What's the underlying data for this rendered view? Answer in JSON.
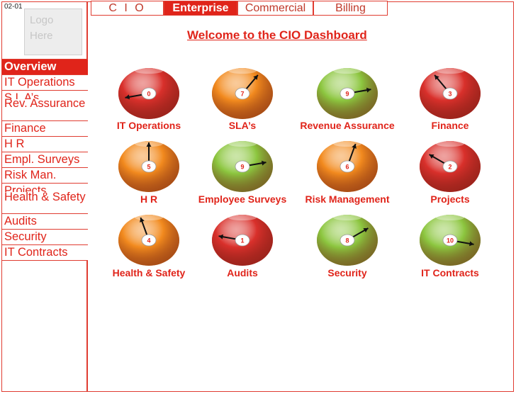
{
  "slide_id": "02-01",
  "logo": {
    "text": "Logo\nHere"
  },
  "topnav": {
    "tabs": [
      {
        "label": "C I O",
        "active": false
      },
      {
        "label": "Enterprise",
        "active": true
      },
      {
        "label": "Commercial",
        "active": false
      },
      {
        "label": "Billing",
        "active": false
      }
    ]
  },
  "title": "Welcome to the CIO Dashboard",
  "sidebar": {
    "items": [
      {
        "label": "Overview",
        "active": true
      },
      {
        "label": "IT Operations",
        "active": false
      },
      {
        "label": "S L A’s",
        "active": false
      },
      {
        "label": "Rev. Assurance",
        "active": false
      },
      {
        "label": "Finance",
        "active": false
      },
      {
        "label": "H R",
        "active": false
      },
      {
        "label": "Empl. Surveys",
        "active": false
      },
      {
        "label": "Risk Man.",
        "active": false
      },
      {
        "label": "Projects",
        "active": false
      },
      {
        "label": "Health & Safety",
        "active": false
      },
      {
        "label": "Audits",
        "active": false
      },
      {
        "label": "Security",
        "active": false
      },
      {
        "label": "IT Contracts",
        "active": false
      }
    ]
  },
  "colors": {
    "red": "#d9302b",
    "orange": "#f28a1e",
    "green": "#8cc63f",
    "accent": "#e0241a"
  },
  "gauges": [
    {
      "label": "IT Operations",
      "value": "0",
      "status": "red"
    },
    {
      "label": "SLA’s",
      "value": "7",
      "status": "orange"
    },
    {
      "label": "Revenue Assurance",
      "value": "9",
      "status": "green"
    },
    {
      "label": "Finance",
      "value": "3",
      "status": "red"
    },
    {
      "label": "H R",
      "value": "5",
      "status": "orange"
    },
    {
      "label": "Employee Surveys",
      "value": "9",
      "status": "green"
    },
    {
      "label": "Risk Management",
      "value": "6",
      "status": "orange"
    },
    {
      "label": "Projects",
      "value": "2",
      "status": "red"
    },
    {
      "label": "Health & Safety",
      "value": "4",
      "status": "orange"
    },
    {
      "label": "Audits",
      "value": "1",
      "status": "red"
    },
    {
      "label": "Security",
      "value": "8",
      "status": "green"
    },
    {
      "label": "IT Contracts",
      "value": "10",
      "status": "green"
    }
  ]
}
